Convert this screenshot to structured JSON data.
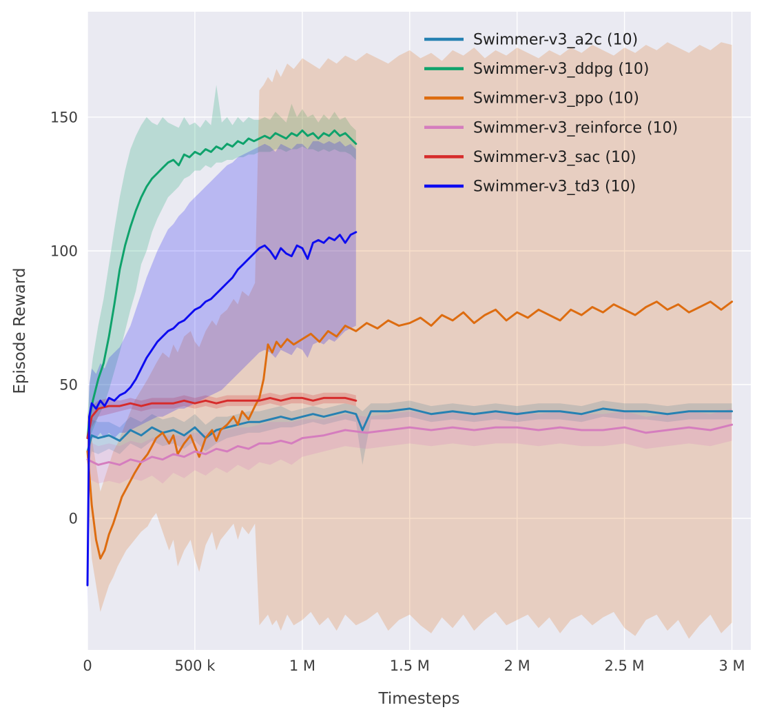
{
  "chart_data": {
    "type": "line",
    "title": "",
    "xlabel": "Timesteps",
    "ylabel": "Episode Reward",
    "xlim": [
      0,
      3.088
    ],
    "ylim": [
      -49.2,
      189.4
    ],
    "grid": true,
    "legend_position": "upper right",
    "plot_bg": "#eaeaf2",
    "grid_color": "#ffffff",
    "band_opacity": 0.22,
    "xticks": {
      "values": [
        0,
        0.5,
        1,
        1.5,
        2,
        2.5,
        3
      ],
      "labels": [
        "0",
        "500 k",
        "1 M",
        "1.5 M",
        "2 M",
        "2.5 M",
        "3 M"
      ]
    },
    "yticks": {
      "values": [
        0,
        50,
        100,
        150
      ],
      "labels": [
        "0",
        "50",
        "100",
        "150"
      ]
    },
    "series": [
      {
        "id": "a2c",
        "label": "Swimmer-v3_a2c (10)",
        "color": "#2681b2",
        "x": [
          0,
          0.02,
          0.05,
          0.1,
          0.15,
          0.2,
          0.25,
          0.3,
          0.35,
          0.4,
          0.45,
          0.5,
          0.55,
          0.6,
          0.65,
          0.7,
          0.75,
          0.8,
          0.85,
          0.9,
          0.95,
          1.0,
          1.05,
          1.1,
          1.15,
          1.2,
          1.25,
          1.28,
          1.32,
          1.4,
          1.5,
          1.6,
          1.7,
          1.8,
          1.9,
          2.0,
          2.1,
          2.2,
          2.3,
          2.4,
          2.5,
          2.6,
          2.7,
          2.8,
          2.9,
          3.0
        ],
        "y": [
          25,
          31,
          30,
          31,
          29,
          33,
          31,
          34,
          32,
          33,
          31,
          34,
          30,
          33,
          34,
          35,
          36,
          36,
          37,
          38,
          37,
          38,
          39,
          38,
          39,
          40,
          39,
          33,
          40,
          40,
          41,
          39,
          40,
          39,
          40,
          39,
          40,
          40,
          39,
          41,
          40,
          40,
          39,
          40,
          40,
          40
        ],
        "lo": [
          18,
          25,
          24,
          26,
          24,
          28,
          26,
          29,
          27,
          28,
          26,
          29,
          25,
          28,
          30,
          31,
          32,
          32,
          33,
          34,
          34,
          35,
          36,
          35,
          36,
          37,
          36,
          20,
          37,
          37,
          38,
          36,
          37,
          36,
          37,
          36,
          37,
          37,
          36,
          38,
          37,
          37,
          36,
          37,
          37,
          37
        ],
        "hi": [
          32,
          37,
          36,
          36,
          34,
          38,
          36,
          39,
          37,
          38,
          36,
          39,
          35,
          38,
          38,
          39,
          40,
          40,
          41,
          42,
          40,
          41,
          42,
          41,
          42,
          43,
          42,
          40,
          43,
          43,
          44,
          42,
          43,
          42,
          43,
          42,
          43,
          43,
          42,
          44,
          43,
          43,
          42,
          43,
          43,
          43
        ]
      },
      {
        "id": "ddpg",
        "label": "Swimmer-v3_ddpg (10)",
        "color": "#0ea26b",
        "x": [
          0,
          0.01,
          0.025,
          0.05,
          0.075,
          0.1,
          0.125,
          0.15,
          0.175,
          0.2,
          0.225,
          0.25,
          0.275,
          0.3,
          0.325,
          0.35,
          0.375,
          0.4,
          0.425,
          0.45,
          0.475,
          0.5,
          0.525,
          0.55,
          0.575,
          0.6,
          0.625,
          0.65,
          0.675,
          0.7,
          0.725,
          0.75,
          0.775,
          0.8,
          0.825,
          0.85,
          0.875,
          0.9,
          0.925,
          0.95,
          0.975,
          1.0,
          1.025,
          1.05,
          1.075,
          1.1,
          1.125,
          1.15,
          1.175,
          1.2,
          1.225,
          1.25
        ],
        "y": [
          30,
          38,
          44,
          52,
          58,
          68,
          80,
          93,
          102,
          109,
          115,
          120,
          124,
          127,
          129,
          131,
          133,
          134,
          132,
          136,
          135,
          137,
          136,
          138,
          137,
          139,
          138,
          140,
          139,
          141,
          140,
          142,
          141,
          142,
          143,
          142,
          144,
          143,
          142,
          144,
          143,
          145,
          143,
          144,
          142,
          144,
          143,
          145,
          143,
          144,
          142,
          140
        ],
        "lo": [
          25,
          30,
          33,
          38,
          42,
          48,
          55,
          62,
          70,
          78,
          85,
          95,
          100,
          107,
          112,
          116,
          120,
          122,
          124,
          127,
          128,
          130,
          130,
          132,
          131,
          133,
          133,
          134,
          134,
          135,
          135,
          136,
          136,
          137,
          137,
          137,
          138,
          138,
          137,
          138,
          138,
          139,
          138,
          138,
          137,
          138,
          137,
          138,
          137,
          137,
          136,
          134
        ],
        "hi": [
          38,
          50,
          60,
          72,
          82,
          95,
          108,
          120,
          130,
          138,
          143,
          147,
          150,
          148,
          147,
          150,
          148,
          147,
          146,
          150,
          147,
          148,
          146,
          149,
          147,
          162,
          148,
          150,
          147,
          150,
          148,
          150,
          149,
          149,
          150,
          149,
          152,
          150,
          148,
          155,
          150,
          153,
          150,
          151,
          148,
          151,
          149,
          152,
          149,
          150,
          147,
          145
        ]
      },
      {
        "id": "ppo",
        "label": "Swimmer-v3_ppo (10)",
        "color": "#dd6c10",
        "x": [
          0,
          0.02,
          0.04,
          0.06,
          0.08,
          0.1,
          0.12,
          0.14,
          0.16,
          0.18,
          0.2,
          0.22,
          0.25,
          0.28,
          0.3,
          0.32,
          0.35,
          0.38,
          0.4,
          0.42,
          0.45,
          0.48,
          0.5,
          0.52,
          0.55,
          0.58,
          0.6,
          0.62,
          0.65,
          0.68,
          0.7,
          0.72,
          0.75,
          0.78,
          0.8,
          0.82,
          0.84,
          0.86,
          0.88,
          0.9,
          0.93,
          0.96,
          1.0,
          1.04,
          1.08,
          1.12,
          1.16,
          1.2,
          1.25,
          1.3,
          1.35,
          1.4,
          1.45,
          1.5,
          1.55,
          1.6,
          1.65,
          1.7,
          1.75,
          1.8,
          1.85,
          1.9,
          1.95,
          2.0,
          2.05,
          2.1,
          2.15,
          2.2,
          2.25,
          2.3,
          2.35,
          2.4,
          2.45,
          2.5,
          2.55,
          2.6,
          2.65,
          2.7,
          2.75,
          2.8,
          2.85,
          2.9,
          2.95,
          3.0
        ],
        "y": [
          25,
          5,
          -8,
          -15,
          -12,
          -6,
          -2,
          3,
          8,
          11,
          14,
          17,
          21,
          24,
          27,
          30,
          32,
          28,
          31,
          24,
          28,
          31,
          27,
          23,
          30,
          33,
          29,
          33,
          35,
          38,
          35,
          40,
          37,
          42,
          45,
          52,
          65,
          62,
          66,
          64,
          67,
          65,
          67,
          69,
          66,
          70,
          68,
          72,
          70,
          73,
          71,
          74,
          72,
          73,
          75,
          72,
          76,
          74,
          77,
          73,
          76,
          78,
          74,
          77,
          75,
          78,
          76,
          74,
          78,
          76,
          79,
          77,
          80,
          78,
          76,
          79,
          81,
          78,
          80,
          77,
          79,
          81,
          78,
          81
        ],
        "lo": [
          10,
          -15,
          -25,
          -35,
          -30,
          -25,
          -22,
          -18,
          -15,
          -12,
          -10,
          -8,
          -5,
          -3,
          0,
          2,
          -5,
          -12,
          -8,
          -18,
          -12,
          -8,
          -15,
          -20,
          -10,
          -5,
          -12,
          -8,
          -5,
          -2,
          -8,
          -3,
          -6,
          -2,
          -40,
          -38,
          -36,
          -40,
          -38,
          -42,
          -36,
          -40,
          -38,
          -35,
          -40,
          -37,
          -42,
          -36,
          -40,
          -38,
          -35,
          -42,
          -38,
          -36,
          -40,
          -43,
          -37,
          -41,
          -36,
          -42,
          -38,
          -35,
          -40,
          -38,
          -36,
          -41,
          -37,
          -43,
          -38,
          -36,
          -40,
          -37,
          -35,
          -41,
          -44,
          -38,
          -36,
          -42,
          -38,
          -45,
          -40,
          -36,
          -43,
          -39
        ],
        "hi": [
          40,
          30,
          20,
          10,
          15,
          20,
          25,
          28,
          32,
          36,
          40,
          44,
          48,
          52,
          55,
          58,
          62,
          60,
          65,
          62,
          68,
          70,
          66,
          64,
          70,
          74,
          72,
          76,
          78,
          82,
          80,
          85,
          83,
          88,
          160,
          162,
          165,
          163,
          168,
          165,
          170,
          168,
          172,
          170,
          168,
          172,
          170,
          173,
          171,
          174,
          172,
          170,
          173,
          175,
          172,
          174,
          171,
          175,
          173,
          176,
          172,
          175,
          173,
          176,
          174,
          172,
          175,
          173,
          176,
          174,
          177,
          175,
          173,
          176,
          174,
          177,
          175,
          178,
          176,
          174,
          177,
          175,
          178,
          177
        ]
      },
      {
        "id": "reinforce",
        "label": "Swimmer-v3_reinforce (10)",
        "color": "#d57dbe",
        "x": [
          0,
          0.05,
          0.1,
          0.15,
          0.2,
          0.25,
          0.3,
          0.35,
          0.4,
          0.45,
          0.5,
          0.55,
          0.6,
          0.65,
          0.7,
          0.75,
          0.8,
          0.85,
          0.9,
          0.95,
          1.0,
          1.1,
          1.2,
          1.3,
          1.4,
          1.5,
          1.6,
          1.7,
          1.8,
          1.9,
          2.0,
          2.1,
          2.2,
          2.3,
          2.4,
          2.5,
          2.6,
          2.7,
          2.8,
          2.9,
          3.0
        ],
        "y": [
          22,
          20,
          21,
          20,
          22,
          21,
          23,
          22,
          24,
          23,
          25,
          24,
          26,
          25,
          27,
          26,
          28,
          28,
          29,
          28,
          30,
          31,
          33,
          32,
          33,
          34,
          33,
          34,
          33,
          34,
          34,
          33,
          34,
          33,
          33,
          34,
          32,
          33,
          34,
          33,
          35
        ],
        "lo": [
          15,
          13,
          14,
          13,
          15,
          14,
          16,
          13,
          17,
          15,
          18,
          16,
          19,
          17,
          20,
          18,
          21,
          20,
          22,
          20,
          23,
          25,
          27,
          26,
          27,
          28,
          27,
          28,
          27,
          28,
          28,
          27,
          28,
          27,
          27,
          28,
          26,
          27,
          28,
          27,
          29
        ],
        "hi": [
          29,
          27,
          28,
          27,
          29,
          28,
          30,
          31,
          31,
          31,
          32,
          32,
          33,
          33,
          34,
          34,
          35,
          36,
          36,
          36,
          37,
          37,
          39,
          38,
          39,
          40,
          39,
          40,
          39,
          40,
          40,
          39,
          40,
          39,
          39,
          40,
          38,
          39,
          40,
          39,
          41
        ]
      },
      {
        "id": "sac",
        "label": "Swimmer-v3_sac (10)",
        "color": "#d62b2b",
        "x": [
          0,
          0.02,
          0.05,
          0.1,
          0.15,
          0.2,
          0.25,
          0.3,
          0.35,
          0.4,
          0.45,
          0.5,
          0.55,
          0.6,
          0.65,
          0.7,
          0.75,
          0.8,
          0.85,
          0.9,
          0.95,
          1.0,
          1.05,
          1.1,
          1.15,
          1.2,
          1.25
        ],
        "y": [
          30,
          38,
          41,
          42,
          42,
          43,
          42,
          43,
          43,
          43,
          44,
          43,
          44,
          43,
          44,
          44,
          44,
          44,
          45,
          44,
          45,
          45,
          44,
          45,
          45,
          45,
          44
        ],
        "lo": [
          24,
          34,
          38,
          39,
          40,
          41,
          40,
          41,
          41,
          41,
          42,
          41,
          42,
          41,
          42,
          42,
          42,
          42,
          43,
          42,
          43,
          43,
          42,
          43,
          43,
          43,
          42
        ],
        "hi": [
          36,
          42,
          44,
          45,
          44,
          45,
          44,
          45,
          45,
          45,
          46,
          45,
          46,
          45,
          46,
          46,
          46,
          46,
          47,
          46,
          47,
          47,
          46,
          47,
          47,
          47,
          46
        ]
      },
      {
        "id": "td3",
        "label": "Swimmer-v3_td3 (10)",
        "color": "#0d0bf0",
        "x": [
          0,
          0.008,
          0.02,
          0.04,
          0.06,
          0.08,
          0.1,
          0.125,
          0.15,
          0.175,
          0.2,
          0.225,
          0.25,
          0.275,
          0.3,
          0.325,
          0.35,
          0.375,
          0.4,
          0.425,
          0.45,
          0.475,
          0.5,
          0.525,
          0.55,
          0.575,
          0.6,
          0.625,
          0.65,
          0.675,
          0.7,
          0.725,
          0.75,
          0.775,
          0.8,
          0.825,
          0.85,
          0.875,
          0.9,
          0.925,
          0.95,
          0.975,
          1.0,
          1.025,
          1.05,
          1.075,
          1.1,
          1.125,
          1.15,
          1.175,
          1.2,
          1.225,
          1.25
        ],
        "y": [
          -25,
          38,
          43,
          41,
          44,
          42,
          45,
          44,
          46,
          47,
          49,
          52,
          56,
          60,
          63,
          66,
          68,
          70,
          71,
          73,
          74,
          76,
          78,
          79,
          81,
          82,
          84,
          86,
          88,
          90,
          93,
          95,
          97,
          99,
          101,
          102,
          100,
          97,
          101,
          99,
          98,
          102,
          101,
          97,
          103,
          104,
          103,
          105,
          104,
          106,
          103,
          106,
          107
        ],
        "lo": [
          -35,
          22,
          30,
          30,
          32,
          30,
          32,
          30,
          32,
          32,
          33,
          34,
          35,
          36,
          37,
          38,
          38,
          39,
          40,
          41,
          41,
          42,
          43,
          44,
          45,
          46,
          47,
          48,
          50,
          52,
          54,
          56,
          58,
          60,
          62,
          63,
          62,
          60,
          63,
          62,
          61,
          64,
          63,
          60,
          65,
          66,
          65,
          67,
          66,
          68,
          70,
          71,
          72
        ],
        "hi": [
          5,
          50,
          56,
          54,
          58,
          56,
          60,
          62,
          64,
          68,
          72,
          78,
          84,
          90,
          95,
          100,
          104,
          108,
          110,
          113,
          115,
          118,
          120,
          122,
          124,
          126,
          128,
          130,
          132,
          133,
          135,
          136,
          137,
          138,
          139,
          140,
          139,
          137,
          140,
          139,
          138,
          140,
          140,
          138,
          141,
          141,
          140,
          141,
          140,
          141,
          139,
          140,
          138
        ]
      }
    ]
  }
}
